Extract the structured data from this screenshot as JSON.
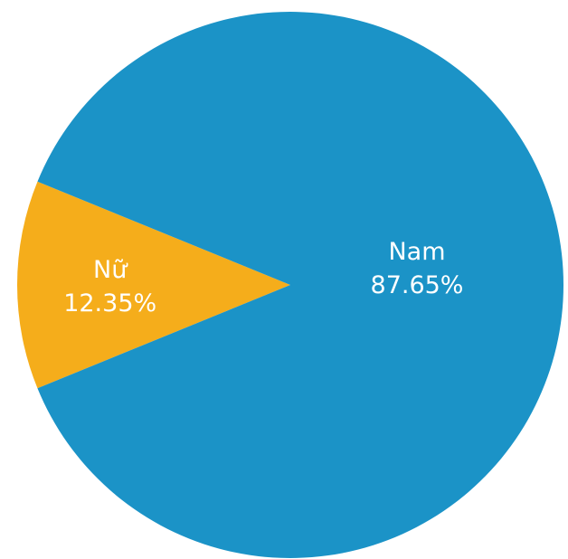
{
  "chart_data": {
    "type": "pie",
    "slices": [
      {
        "label": "Nam",
        "value_label": "87.65%",
        "value": 87.65,
        "color": "#1b93c7"
      },
      {
        "label": "Nữ",
        "value_label": "12.35%",
        "value": 12.35,
        "color": "#f5ad1b"
      }
    ]
  }
}
